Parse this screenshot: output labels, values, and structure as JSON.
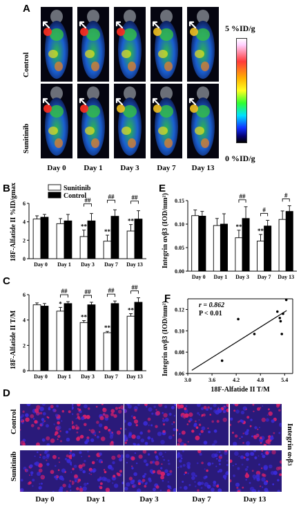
{
  "panel_letters": {
    "a": "A",
    "b": "B",
    "c": "C",
    "d": "D",
    "e": "E",
    "f": "F"
  },
  "panelA": {
    "rows": [
      "Control",
      "Sunitinib"
    ],
    "days": [
      "Day 0",
      "Day 1",
      "Day 3",
      "Day 7",
      "Day 13"
    ],
    "scale_max": "5 %ID/g",
    "scale_min": "0 %ID/g",
    "colormap": [
      "#000000",
      "#1030ff",
      "#00e0ff",
      "#30ff30",
      "#ffff20",
      "#ffb000",
      "#ff3a3a",
      "#ffd0ff",
      "#ffffff"
    ]
  },
  "panelD": {
    "rows": [
      "Control",
      "Sunitinib"
    ],
    "days": [
      "Day 0",
      "Day 1",
      "Day 3",
      "Day 7",
      "Day 13"
    ],
    "side_label": "Integrin αvβ3",
    "colors": {
      "blue": "#3a2bd8",
      "red": "#d8206a"
    }
  },
  "legend": {
    "sunitinib": "Sunitinib",
    "control": "Control"
  },
  "chart_data": [
    {
      "id": "B",
      "type": "bar",
      "categories": [
        "Day 0",
        "Day 1",
        "Day 3",
        "Day 7",
        "Day 13"
      ],
      "ylabel": "18F-Alfatide II %ID/gmax",
      "ylim": [
        0,
        6
      ],
      "yticks": [
        "0",
        "2",
        "4",
        "6"
      ],
      "series": [
        {
          "name": "Sunitinib",
          "values": [
            4.3,
            3.8,
            2.4,
            1.9,
            3.0
          ],
          "errors": [
            0.35,
            0.55,
            0.7,
            0.65,
            0.7
          ],
          "color": "#ffffff"
        },
        {
          "name": "Control",
          "values": [
            4.5,
            4.1,
            4.1,
            4.6,
            4.3
          ],
          "errors": [
            0.3,
            0.7,
            0.8,
            0.7,
            0.9
          ],
          "color": "#000000"
        }
      ],
      "stars": [
        "",
        "",
        "**",
        "**",
        "**"
      ],
      "hash": [
        "",
        "",
        "##",
        "##",
        "##"
      ]
    },
    {
      "id": "C",
      "type": "bar",
      "categories": [
        "Day 0",
        "Day 1",
        "Day 3",
        "Day 7",
        "Day 13"
      ],
      "ylabel": "18F-Alfatide II T/M",
      "ylim": [
        0,
        6
      ],
      "yticks": [
        "0",
        "2",
        "4",
        "6"
      ],
      "series": [
        {
          "name": "Sunitinib",
          "values": [
            5.2,
            4.7,
            3.8,
            3.0,
            4.3
          ],
          "errors": [
            0.15,
            0.3,
            0.15,
            0.1,
            0.2
          ],
          "color": "#ffffff"
        },
        {
          "name": "Control",
          "values": [
            5.1,
            5.3,
            5.2,
            5.3,
            5.4
          ],
          "errors": [
            0.2,
            0.15,
            0.2,
            0.2,
            0.35
          ],
          "color": "#000000"
        }
      ],
      "stars": [
        "",
        "*",
        "**",
        "**",
        "**"
      ],
      "hash": [
        "",
        "##",
        "##",
        "##",
        "##"
      ]
    },
    {
      "id": "E",
      "type": "bar",
      "categories": [
        "Day 0",
        "Day 1",
        "Day 3",
        "Day 7",
        "Day 13"
      ],
      "ylabel": "Integrin αvβ3 (IOD/mm²)",
      "ylim": [
        0,
        0.15
      ],
      "yticks": [
        "0.00",
        "0.05",
        "0.10",
        "0.15"
      ],
      "series": [
        {
          "name": "Sunitinib",
          "values": [
            0.118,
            0.097,
            0.071,
            0.064,
            0.11
          ],
          "errors": [
            0.012,
            0.015,
            0.016,
            0.014,
            0.018
          ],
          "color": "#ffffff"
        },
        {
          "name": "Control",
          "values": [
            0.117,
            0.1,
            0.112,
            0.096,
            0.127
          ],
          "errors": [
            0.01,
            0.022,
            0.025,
            0.012,
            0.012
          ],
          "color": "#000000"
        }
      ],
      "stars": [
        "",
        "",
        "**",
        "**",
        ""
      ],
      "hash": [
        "",
        "",
        "##",
        "#",
        "#"
      ]
    },
    {
      "id": "F",
      "type": "scatter",
      "xlabel": "18F-Alfatide II T/M",
      "ylabel": "Integrin αvβ3 (IOD/mm²)",
      "xlim": [
        3.0,
        5.6
      ],
      "ylim": [
        0.06,
        0.13
      ],
      "xticks": [
        "3.0",
        "3.6",
        "4.2",
        "4.8",
        "5.4"
      ],
      "yticks": [
        "0.06",
        "0.08",
        "0.10",
        "0.12"
      ],
      "points": [
        {
          "x": 3.85,
          "y": 0.072
        },
        {
          "x": 4.25,
          "y": 0.111
        },
        {
          "x": 4.65,
          "y": 0.097
        },
        {
          "x": 5.22,
          "y": 0.118
        },
        {
          "x": 5.28,
          "y": 0.112
        },
        {
          "x": 5.3,
          "y": 0.109
        },
        {
          "x": 5.33,
          "y": 0.097
        },
        {
          "x": 5.36,
          "y": 0.116
        },
        {
          "x": 5.44,
          "y": 0.129
        }
      ],
      "fit": {
        "x1": 3.1,
        "y1": 0.063,
        "x2": 5.45,
        "y2": 0.119
      },
      "r_label": "r = 0.862",
      "p_label": "P < 0.01"
    }
  ]
}
